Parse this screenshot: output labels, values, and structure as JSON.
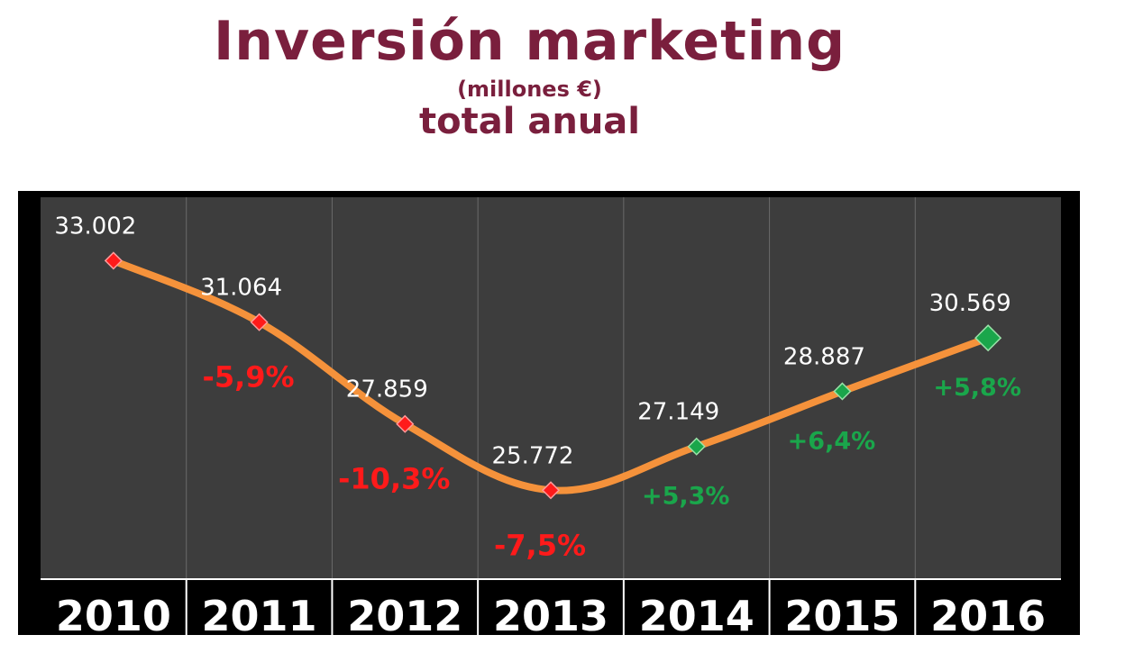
{
  "header": {
    "title": "Inversión marketing",
    "subtitle_units": "(millones €)",
    "subtitle_total": "total anual"
  },
  "colors": {
    "title": "#7a1f3d",
    "plot_background": "#3d3d3d",
    "frame": "#000000",
    "line": "#f5923b",
    "decrease": "#ff1a1a",
    "increase": "#1aa64b",
    "text": "#ffffff"
  },
  "chart_data": {
    "type": "line",
    "categories": [
      "2010",
      "2011",
      "2012",
      "2013",
      "2014",
      "2015",
      "2016"
    ],
    "values": [
      33002,
      31064,
      27859,
      25772,
      27149,
      28887,
      30569
    ],
    "value_labels": [
      "33.002",
      "31.064",
      "27.859",
      "25.772",
      "27.149",
      "28.887",
      "30.569"
    ],
    "changes": [
      "",
      "-5,9%",
      "-10,3%",
      "-7,5%",
      "+5,3%",
      "+6,4%",
      "+5,8%"
    ],
    "change_direction": [
      "none",
      "down",
      "down",
      "down",
      "up",
      "up",
      "up"
    ],
    "ylim": [
      23000,
      35000
    ],
    "grid": "vertical",
    "legend": "none",
    "smooth": true
  }
}
